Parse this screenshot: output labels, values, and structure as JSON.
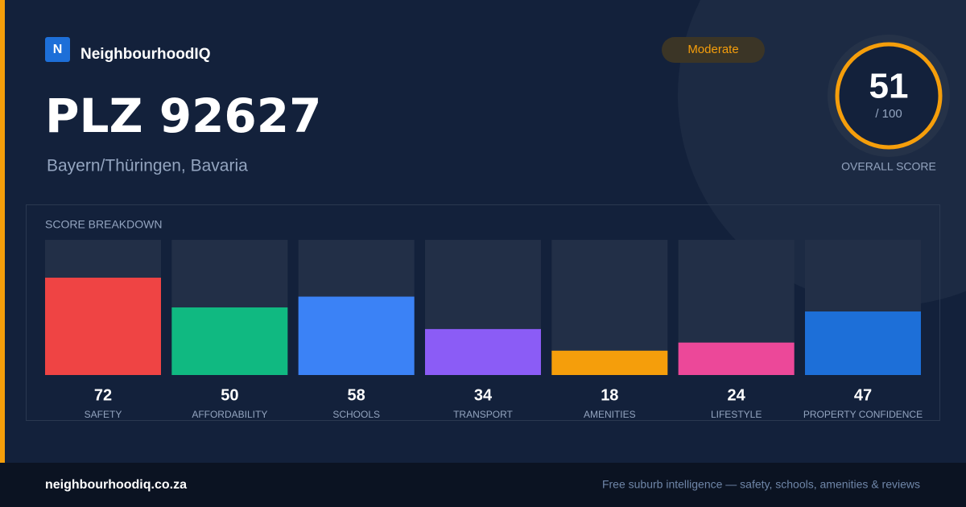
{
  "brand": {
    "logo": "N",
    "name": "NeighbourhoodIQ"
  },
  "header": {
    "title": "PLZ 92627",
    "subtitle": "Bayern/Thüringen, Bavaria",
    "badge": "Moderate"
  },
  "score": {
    "value": 51,
    "max_label": "/ 100",
    "caption": "OVERALL SCORE"
  },
  "chart_data": {
    "type": "bar",
    "title": "SCORE BREAKDOWN",
    "categories": [
      "SAFETY",
      "AFFORDABILITY",
      "SCHOOLS",
      "TRANSPORT",
      "AMENITIES",
      "LIFESTYLE",
      "PROPERTY CONFIDENCE"
    ],
    "values": [
      72,
      50,
      58,
      34,
      18,
      24,
      47
    ],
    "colors": [
      "#ef4444",
      "#10b981",
      "#3b82f6",
      "#8b5cf6",
      "#f59e0b",
      "#ec4899",
      "#1d6fd8"
    ],
    "ylim": [
      0,
      100
    ]
  },
  "footer": {
    "site": "neighbourhoodiq.co.za",
    "tagline": "Free suburb intelligence — safety, schools, amenities & reviews"
  }
}
